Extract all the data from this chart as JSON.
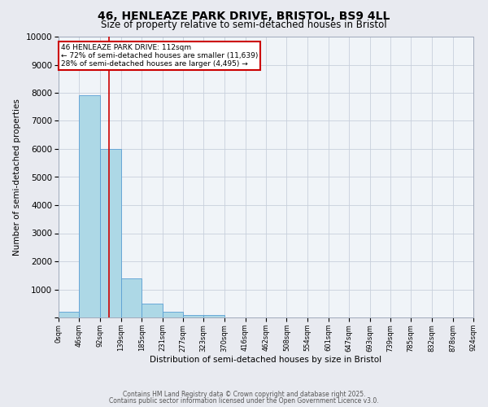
{
  "title": "46, HENLEAZE PARK DRIVE, BRISTOL, BS9 4LL",
  "subtitle": "Size of property relative to semi-detached houses in Bristol",
  "xlabel": "Distribution of semi-detached houses by size in Bristol",
  "ylabel": "Number of semi-detached properties",
  "footer1": "Contains HM Land Registry data © Crown copyright and database right 2025.",
  "footer2": "Contains public sector information licensed under the Open Government Licence v3.0.",
  "bar_values": [
    200,
    7900,
    6000,
    1400,
    500,
    200,
    100,
    100,
    0,
    0,
    0,
    0,
    0,
    0,
    0,
    0,
    0,
    0,
    0,
    0
  ],
  "bin_edges": [
    0,
    46,
    92,
    139,
    185,
    231,
    277,
    323,
    370,
    416,
    462,
    508,
    554,
    601,
    647,
    693,
    739,
    785,
    832,
    878,
    924
  ],
  "x_labels": [
    "0sqm",
    "46sqm",
    "92sqm",
    "139sqm",
    "185sqm",
    "231sqm",
    "277sqm",
    "323sqm",
    "370sqm",
    "416sqm",
    "462sqm",
    "508sqm",
    "554sqm",
    "601sqm",
    "647sqm",
    "693sqm",
    "739sqm",
    "785sqm",
    "832sqm",
    "878sqm",
    "924sqm"
  ],
  "bar_color": "#add8e6",
  "bar_edge_color": "#5a9fd4",
  "property_line_x": 112,
  "property_line_color": "#cc0000",
  "annotation_title": "46 HENLEAZE PARK DRIVE: 112sqm",
  "annotation_line1": "← 72% of semi-detached houses are smaller (11,639)",
  "annotation_line2": "28% of semi-detached houses are larger (4,495) →",
  "annotation_box_color": "#cc0000",
  "ylim": [
    0,
    10000
  ],
  "yticks": [
    0,
    1000,
    2000,
    3000,
    4000,
    5000,
    6000,
    7000,
    8000,
    9000,
    10000
  ],
  "bg_color": "#e8eaf0",
  "plot_bg_color": "#f0f4f8",
  "grid_color": "#c8d0dc"
}
